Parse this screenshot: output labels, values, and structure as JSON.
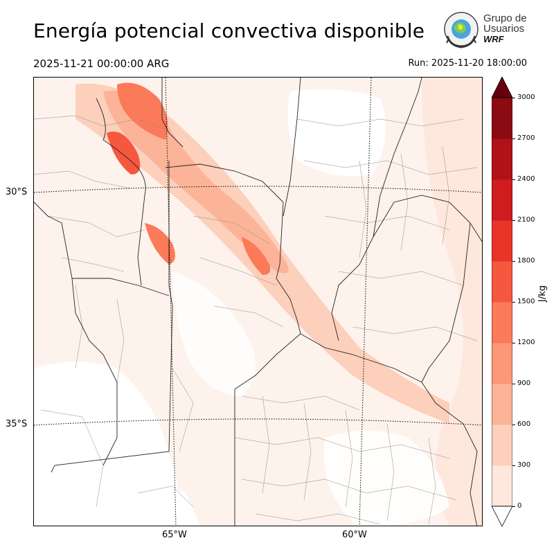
{
  "header": {
    "title": "Energía potencial convectiva disponible",
    "valid_time": "2025-11-21 00:00:00 ARG",
    "run_time": "Run: 2025-11-20 18:00:00"
  },
  "logo": {
    "line1": "Grupo de",
    "line2": "Usuarios",
    "line3": "WRF"
  },
  "map": {
    "lat_labels": [
      "30°S",
      "35°S"
    ],
    "lon_labels": [
      "65°W",
      "60°W"
    ]
  },
  "colorbar": {
    "units": "J/kg",
    "ticks": [
      "0",
      "300",
      "600",
      "900",
      "1200",
      "1500",
      "1800",
      "2100",
      "2400",
      "2700",
      "3000"
    ],
    "colors": [
      "#fee8dd",
      "#fdd0bc",
      "#fcb499",
      "#fc9777",
      "#fb7a5a",
      "#f6573f",
      "#e83429",
      "#cf1c1f",
      "#b11218",
      "#8c0a12",
      "#6c0811"
    ],
    "under_color": "#ffffff",
    "over_color": "#67000d"
  }
}
